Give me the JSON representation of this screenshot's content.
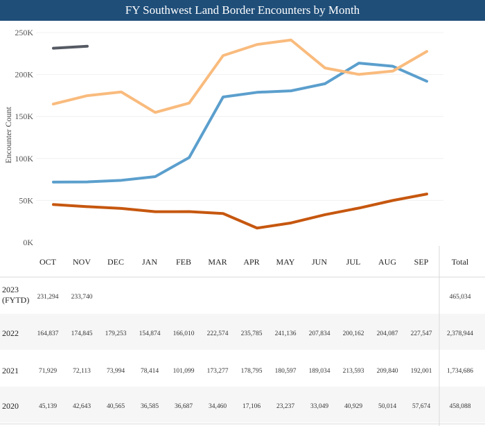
{
  "header": {
    "title": "FY Southwest Land Border Encounters by Month"
  },
  "chart_data": {
    "type": "line",
    "title": "FY Southwest Land Border Encounters by Month",
    "ylabel": "Encounter Count",
    "ylim": [
      0,
      250000
    ],
    "yticks": [
      "0K",
      "50K",
      "100K",
      "150K",
      "200K",
      "250K"
    ],
    "categories": [
      "OCT",
      "NOV",
      "DEC",
      "JAN",
      "FEB",
      "MAR",
      "APR",
      "MAY",
      "JUN",
      "JUL",
      "AUG",
      "SEP"
    ],
    "total_header": "Total",
    "series": [
      {
        "name": "2023 (FYTD)",
        "color": "#555a63",
        "values": [
          231294,
          233740,
          null,
          null,
          null,
          null,
          null,
          null,
          null,
          null,
          null,
          null
        ],
        "labels": [
          "231,294",
          "233,740",
          "",
          "",
          "",
          "",
          "",
          "",
          "",
          "",
          "",
          ""
        ],
        "total": "465,034"
      },
      {
        "name": "2022",
        "color": "#f9bb7d",
        "values": [
          164837,
          174845,
          179253,
          154874,
          166010,
          222574,
          235785,
          241136,
          207834,
          200162,
          204087,
          227547
        ],
        "labels": [
          "164,837",
          "174,845",
          "179,253",
          "154,874",
          "166,010",
          "222,574",
          "235,785",
          "241,136",
          "207,834",
          "200,162",
          "204,087",
          "227,547"
        ],
        "total": "2,378,944"
      },
      {
        "name": "2021",
        "color": "#5b9fcd",
        "values": [
          71929,
          72113,
          73994,
          78414,
          101099,
          173277,
          178795,
          180597,
          189034,
          213593,
          209840,
          192001
        ],
        "labels": [
          "71,929",
          "72,113",
          "73,994",
          "78,414",
          "101,099",
          "173,277",
          "178,795",
          "180,597",
          "189,034",
          "213,593",
          "209,840",
          "192,001"
        ],
        "total": "1,734,686"
      },
      {
        "name": "2020",
        "color": "#c6570f",
        "values": [
          45139,
          42643,
          40565,
          36585,
          36687,
          34460,
          17106,
          23237,
          33049,
          40929,
          50014,
          57674
        ],
        "labels": [
          "45,139",
          "42,643",
          "40,565",
          "36,585",
          "36,687",
          "34,460",
          "17,106",
          "23,237",
          "33,049",
          "40,929",
          "50,014",
          "57,674"
        ],
        "total": "458,088"
      }
    ]
  }
}
